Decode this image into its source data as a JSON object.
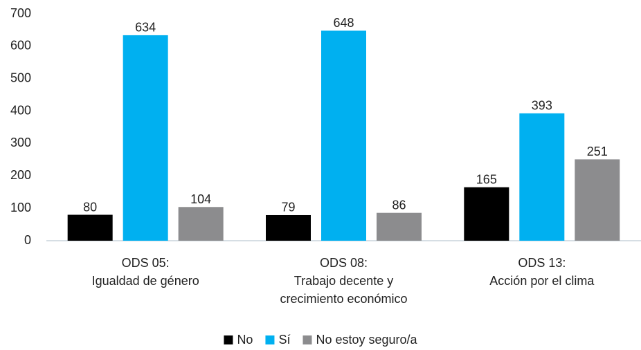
{
  "chart_data": {
    "type": "bar",
    "categories": [
      "ODS 05:\nIgualdad de género",
      "ODS 08:\nTrabajo decente y\ncrecimiento económico",
      "ODS 13:\nAcción por el clima"
    ],
    "series": [
      {
        "name": "No",
        "color": "#000000",
        "values": [
          80,
          79,
          165
        ]
      },
      {
        "name": "Sí",
        "color": "#00b0f0",
        "values": [
          634,
          648,
          393
        ]
      },
      {
        "name": "No estoy seguro/a",
        "color": "#8c8c8e",
        "values": [
          104,
          86,
          251
        ]
      }
    ],
    "ylim": [
      0,
      700
    ],
    "yticks": [
      0,
      100,
      200,
      300,
      400,
      500,
      600,
      700
    ],
    "grid": false,
    "legend": "bottom"
  }
}
